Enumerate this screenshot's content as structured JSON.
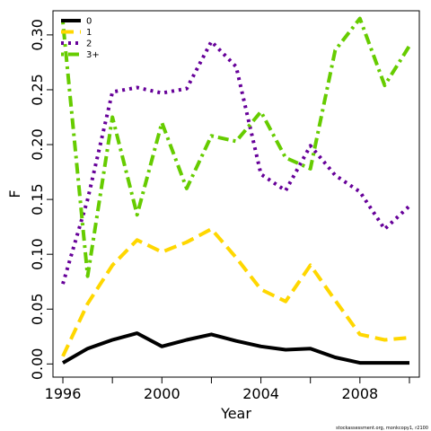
{
  "chart_data": {
    "type": "line",
    "xlabel": "Year",
    "ylabel": "F",
    "xlim": [
      1995.6,
      2010.4
    ],
    "ylim": [
      -0.012,
      0.322
    ],
    "x_ticks": [
      1996,
      2000,
      2004,
      2008
    ],
    "x_tick_marks": [
      1996,
      1998,
      2000,
      2002,
      2004,
      2006,
      2008,
      2010
    ],
    "y_ticks": [
      0.0,
      0.05,
      0.1,
      0.15,
      0.2,
      0.25,
      0.3
    ],
    "y_tick_labels": [
      "0.00",
      "0.05",
      "0.10",
      "0.15",
      "0.20",
      "0.25",
      "0.30"
    ],
    "grid": false,
    "legend_position": "top-left",
    "x": [
      1996,
      1997,
      1998,
      1999,
      2000,
      2001,
      2002,
      2003,
      2004,
      2005,
      2006,
      2007,
      2008,
      2009,
      2010
    ],
    "series": [
      {
        "name": "0",
        "color": "#000000",
        "dash": "solid",
        "values": [
          0.001,
          0.014,
          0.022,
          0.028,
          0.016,
          0.022,
          0.027,
          0.021,
          0.016,
          0.013,
          0.014,
          0.006,
          0.001,
          0.001,
          0.001
        ]
      },
      {
        "name": "1",
        "color": "#FFD700",
        "dash": "dashed",
        "values": [
          0.007,
          0.055,
          0.09,
          0.113,
          0.102,
          0.111,
          0.123,
          0.097,
          0.068,
          0.057,
          0.09,
          0.058,
          0.027,
          0.022,
          0.024
        ]
      },
      {
        "name": "2",
        "color": "#660099",
        "dash": "dotted",
        "values": [
          0.073,
          0.15,
          0.248,
          0.252,
          0.247,
          0.251,
          0.294,
          0.271,
          0.173,
          0.158,
          0.199,
          0.172,
          0.157,
          0.123,
          0.144
        ]
      },
      {
        "name": "3+",
        "color": "#66CC00",
        "dash": "dotdash",
        "values": [
          0.312,
          0.08,
          0.225,
          0.136,
          0.22,
          0.16,
          0.208,
          0.203,
          0.23,
          0.188,
          0.178,
          0.286,
          0.315,
          0.254,
          0.29
        ]
      }
    ]
  },
  "credit": "stockassessment.org, monkcopy1, r2100"
}
